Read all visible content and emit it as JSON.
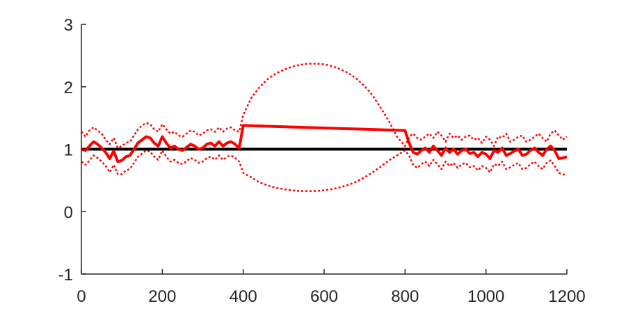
{
  "chart_data": {
    "type": "line",
    "title": "",
    "xlabel": "",
    "ylabel": "",
    "xlim": [
      0,
      1200
    ],
    "ylim": [
      -1,
      3
    ],
    "x_ticks": [
      0,
      200,
      400,
      600,
      800,
      1000,
      1200
    ],
    "y_ticks": [
      -1,
      0,
      1,
      2,
      3
    ],
    "grid": false,
    "legend": "none",
    "colors": {
      "estimate": "#ff0000",
      "bound": "#ff0000",
      "reference": "#000000",
      "axis": "#262626"
    },
    "series": [
      {
        "style": "reference-line",
        "x": [
          0,
          1200
        ],
        "y": [
          1,
          1
        ]
      },
      {
        "style": "solid-thick",
        "x": [
          0,
          10,
          20,
          30,
          40,
          50,
          60,
          70,
          80,
          90,
          100,
          110,
          120,
          130,
          140,
          150,
          160,
          170,
          180,
          190,
          200,
          210,
          220,
          230,
          240,
          250,
          260,
          270,
          280,
          290,
          300,
          310,
          320,
          330,
          340,
          350,
          360,
          370,
          380,
          390,
          400,
          800,
          810,
          820,
          830,
          840,
          850,
          860,
          870,
          880,
          890,
          900,
          910,
          920,
          930,
          940,
          950,
          960,
          970,
          980,
          990,
          1000,
          1010,
          1020,
          1030,
          1040,
          1050,
          1060,
          1070,
          1080,
          1090,
          1100,
          1110,
          1120,
          1130,
          1140,
          1150,
          1160,
          1170,
          1180,
          1190,
          1200
        ],
        "y": [
          1.0,
          0.98,
          1.05,
          1.12,
          1.08,
          1.02,
          0.95,
          0.85,
          0.97,
          0.8,
          0.82,
          0.88,
          0.9,
          1.0,
          1.1,
          1.15,
          1.2,
          1.18,
          1.1,
          1.05,
          1.2,
          1.1,
          1.02,
          1.05,
          1.0,
          0.98,
          1.03,
          1.08,
          1.05,
          1.0,
          1.02,
          1.08,
          1.1,
          1.05,
          1.12,
          1.05,
          1.1,
          1.12,
          1.08,
          1.02,
          1.38,
          1.3,
          1.1,
          0.95,
          0.92,
          0.98,
          1.02,
          0.95,
          1.05,
          0.98,
          0.9,
          1.02,
          0.95,
          1.0,
          0.92,
          0.98,
          1.0,
          0.93,
          0.95,
          0.88,
          0.95,
          0.92,
          0.85,
          0.98,
          0.95,
          1.02,
          0.9,
          0.93,
          0.97,
          1.0,
          0.9,
          0.92,
          0.98,
          1.02,
          0.95,
          0.9,
          1.0,
          1.05,
          0.98,
          0.85,
          0.86,
          0.88
        ]
      },
      {
        "style": "dotted",
        "x": [
          0,
          10,
          20,
          30,
          40,
          50,
          60,
          70,
          80,
          90,
          100,
          110,
          120,
          130,
          140,
          150,
          160,
          170,
          180,
          190,
          200,
          210,
          220,
          230,
          240,
          250,
          260,
          270,
          280,
          290,
          300,
          310,
          320,
          330,
          340,
          350,
          360,
          370,
          380,
          390,
          400,
          420,
          440,
          460,
          480,
          500,
          520,
          540,
          560,
          580,
          600,
          620,
          640,
          660,
          680,
          700,
          720,
          740,
          760,
          780,
          800,
          810,
          820,
          830,
          840,
          850,
          860,
          870,
          880,
          890,
          900,
          910,
          920,
          930,
          940,
          950,
          960,
          970,
          980,
          990,
          1000,
          1010,
          1020,
          1030,
          1040,
          1050,
          1060,
          1070,
          1080,
          1090,
          1100,
          1110,
          1120,
          1130,
          1140,
          1150,
          1160,
          1170,
          1180,
          1190,
          1200
        ],
        "y": [
          1.28,
          1.2,
          1.3,
          1.35,
          1.3,
          1.25,
          1.15,
          1.08,
          1.18,
          1.02,
          1.05,
          1.1,
          1.12,
          1.22,
          1.32,
          1.38,
          1.42,
          1.4,
          1.32,
          1.28,
          1.4,
          1.32,
          1.25,
          1.28,
          1.22,
          1.2,
          1.25,
          1.3,
          1.28,
          1.22,
          1.25,
          1.3,
          1.32,
          1.28,
          1.35,
          1.28,
          1.33,
          1.35,
          1.3,
          1.28,
          1.55,
          1.82,
          1.99,
          2.12,
          2.21,
          2.27,
          2.32,
          2.35,
          2.37,
          2.37,
          2.36,
          2.33,
          2.28,
          2.22,
          2.13,
          2.01,
          1.86,
          1.66,
          1.45,
          1.2,
          1.05,
          1.2,
          1.25,
          1.18,
          1.15,
          1.2,
          1.25,
          1.18,
          1.28,
          1.22,
          1.12,
          1.25,
          1.18,
          1.22,
          1.15,
          1.2,
          1.22,
          1.15,
          1.18,
          1.1,
          1.2,
          1.15,
          1.05,
          1.2,
          1.18,
          1.25,
          1.12,
          1.15,
          1.2,
          1.22,
          1.12,
          1.15,
          1.2,
          1.25,
          1.18,
          1.12,
          1.25,
          1.3,
          1.22,
          1.15,
          1.2
        ]
      },
      {
        "style": "dotted",
        "x": [
          0,
          10,
          20,
          30,
          40,
          50,
          60,
          70,
          80,
          90,
          100,
          110,
          120,
          130,
          140,
          150,
          160,
          170,
          180,
          190,
          200,
          210,
          220,
          230,
          240,
          250,
          260,
          270,
          280,
          290,
          300,
          310,
          320,
          330,
          340,
          350,
          360,
          370,
          380,
          390,
          400,
          420,
          440,
          460,
          480,
          500,
          520,
          540,
          560,
          580,
          600,
          620,
          640,
          660,
          680,
          700,
          720,
          740,
          760,
          780,
          800,
          810,
          820,
          830,
          840,
          850,
          860,
          870,
          880,
          890,
          900,
          910,
          920,
          930,
          940,
          950,
          960,
          970,
          980,
          990,
          1000,
          1010,
          1020,
          1030,
          1040,
          1050,
          1060,
          1070,
          1080,
          1090,
          1100,
          1110,
          1120,
          1130,
          1140,
          1150,
          1160,
          1170,
          1180,
          1190,
          1200
        ],
        "y": [
          0.8,
          0.75,
          0.82,
          0.9,
          0.86,
          0.8,
          0.73,
          0.63,
          0.75,
          0.6,
          0.6,
          0.66,
          0.68,
          0.78,
          0.88,
          0.93,
          0.98,
          0.96,
          0.88,
          0.83,
          0.98,
          0.88,
          0.8,
          0.83,
          0.78,
          0.76,
          0.81,
          0.86,
          0.83,
          0.78,
          0.8,
          0.86,
          0.88,
          0.83,
          0.9,
          0.83,
          0.88,
          0.9,
          0.86,
          0.8,
          0.62,
          0.55,
          0.47,
          0.42,
          0.38,
          0.36,
          0.34,
          0.33,
          0.33,
          0.33,
          0.34,
          0.36,
          0.39,
          0.43,
          0.48,
          0.55,
          0.63,
          0.72,
          0.82,
          0.9,
          0.98,
          0.9,
          0.75,
          0.7,
          0.76,
          0.8,
          0.73,
          0.83,
          0.76,
          0.68,
          0.8,
          0.73,
          0.78,
          0.7,
          0.76,
          0.78,
          0.71,
          0.73,
          0.66,
          0.73,
          0.7,
          0.63,
          0.76,
          0.73,
          0.8,
          0.68,
          0.71,
          0.75,
          0.78,
          0.68,
          0.7,
          0.76,
          0.8,
          0.73,
          0.68,
          0.78,
          0.82,
          0.73,
          0.62,
          0.6,
          0.58
        ]
      }
    ]
  }
}
